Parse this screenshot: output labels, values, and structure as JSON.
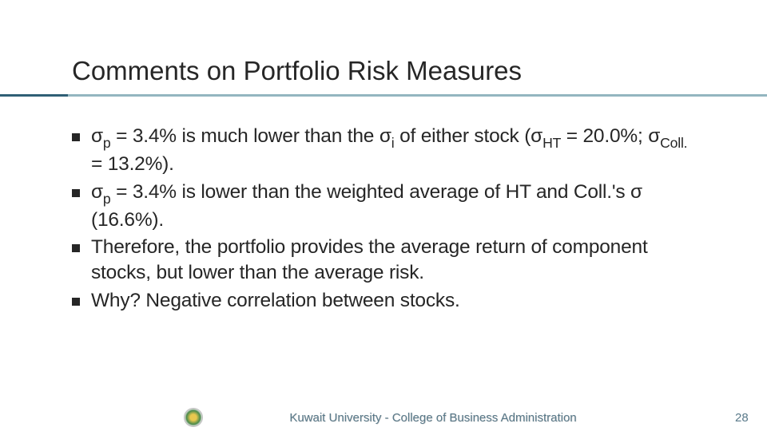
{
  "slide": {
    "title": "Comments on Portfolio Risk Measures",
    "bullets": [
      {
        "pre": "σ",
        "sub1": "p",
        "mid1": " = 3.4% is much lower than the σ",
        "sub2": "i",
        "mid2": " of either stock (σ",
        "sub3": "HT",
        "mid3": " = 20.0%; σ",
        "sub4": "Coll.",
        "mid4": " = 13.2%)."
      },
      {
        "pre": "σ",
        "sub1": "p",
        "mid1": " = 3.4% is lower than the weighted average of HT and Coll.'s σ (16.6%)."
      },
      {
        "pre": "Therefore, the portfolio provides the average return of component stocks, but lower than the average risk."
      },
      {
        "pre": "Why? Negative correlation between stocks."
      }
    ]
  },
  "footer": {
    "text": "Kuwait University - College of Business Administration",
    "page": "28"
  },
  "colors": {
    "accent": "#3a7a8d",
    "text": "#262626",
    "footer_text": "#5a7a8a"
  }
}
